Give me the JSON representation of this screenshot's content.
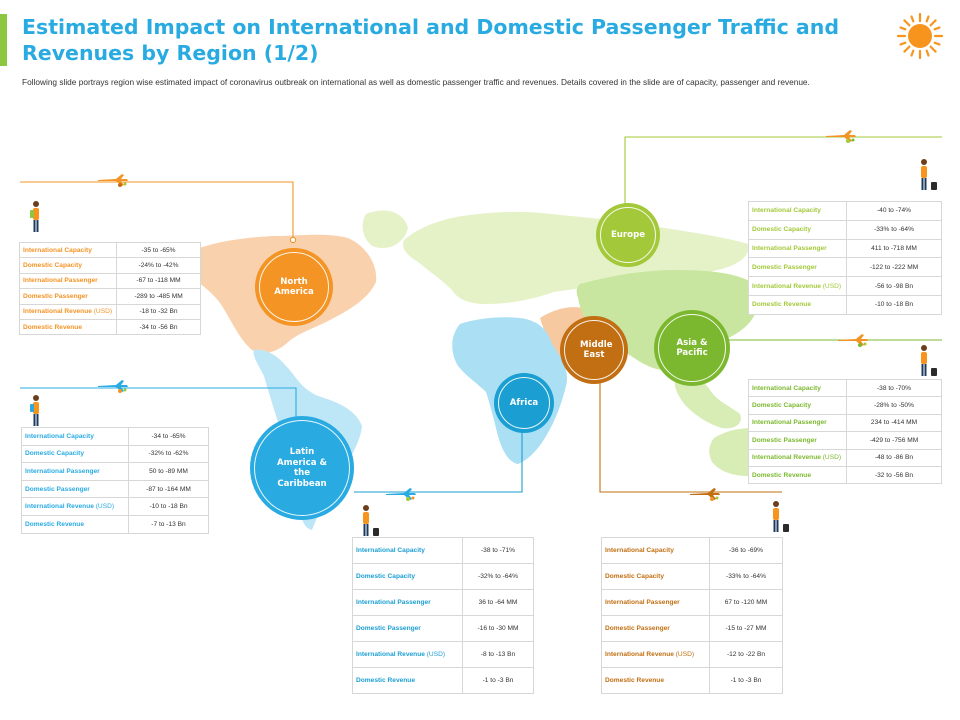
{
  "header": {
    "title": "Estimated Impact on International and Domestic Passenger Traffic and Revenues by Region (1/2)",
    "subtitle": "Following slide portrays region wise estimated impact of coronavirus outbreak on international as well as domestic passenger traffic and revenues. Details covered in the slide are of capacity, passenger and revenue."
  },
  "colors": {
    "title": "#29abe2",
    "accent_bar": "#8dc63f",
    "north_america": "#f39425",
    "latin_america": "#29abe2",
    "europe": "#a3c93a",
    "africa": "#1b9fd2",
    "middle_east": "#c16f12",
    "asia_pacific": "#7cb82f"
  },
  "regions": {
    "north_america": {
      "name": "North America",
      "rows": [
        {
          "label": "International Capacity",
          "value": "-35 to -65%"
        },
        {
          "label": "Domestic Capacity",
          "value": "-24% to -42%"
        },
        {
          "label": "International Passenger",
          "value": "-67 to -118 MM"
        },
        {
          "label": "Domestic Passenger",
          "value": "-289 to -485 MM"
        },
        {
          "label": "International Revenue",
          "unit": "(USD)",
          "value": "-18 to -32 Bn"
        },
        {
          "label": "Domestic Revenue",
          "value": "-34 to -56 Bn"
        }
      ]
    },
    "latin_america": {
      "name": "Latin America & the Caribbean",
      "rows": [
        {
          "label": "International Capacity",
          "value": "-34 to -65%"
        },
        {
          "label": "Domestic Capacity",
          "value": "-32% to -62%"
        },
        {
          "label": "International Passenger",
          "value": "50 to -89 MM"
        },
        {
          "label": "Domestic Passenger",
          "value": "-87 to -164 MM"
        },
        {
          "label": "International Revenue",
          "unit": "(USD)",
          "value": "-10 to -18 Bn"
        },
        {
          "label": "Domestic Revenue",
          "value": "-7 to -13 Bn"
        }
      ]
    },
    "europe": {
      "name": "Europe",
      "rows": [
        {
          "label": "International Capacity",
          "value": "-40 to -74%"
        },
        {
          "label": "Domestic Capacity",
          "value": "-33% to -64%"
        },
        {
          "label": "International Passenger",
          "value": "411 to -718 MM"
        },
        {
          "label": "Domestic Passenger",
          "value": "-122 to -222 MM"
        },
        {
          "label": "International Revenue",
          "unit": "(USD)",
          "value": "-56 to -98 Bn"
        },
        {
          "label": "Domestic Revenue",
          "value": "-10  to -18 Bn"
        }
      ]
    },
    "africa": {
      "name": "Africa",
      "rows": [
        {
          "label": "International Capacity",
          "value": "-38 to -71%"
        },
        {
          "label": "Domestic Capacity",
          "value": "-32% to -64%"
        },
        {
          "label": "International Passenger",
          "value": "36 to -64 MM"
        },
        {
          "label": "Domestic Passenger",
          "value": "-16 to -30 MM"
        },
        {
          "label": "International Revenue",
          "unit": "(USD)",
          "value": "-8 to -13 Bn"
        },
        {
          "label": "Domestic Revenue",
          "value": "-1 to -3 Bn"
        }
      ]
    },
    "middle_east": {
      "name": "Middle East",
      "rows": [
        {
          "label": "International Capacity",
          "value": "-36 to -69%"
        },
        {
          "label": "Domestic Capacity",
          "value": "-33% to -64%"
        },
        {
          "label": "International Passenger",
          "value": "67 to -120 MM"
        },
        {
          "label": "Domestic Passenger",
          "value": "-15 to -27 MM"
        },
        {
          "label": "International Revenue",
          "unit": "(USD)",
          "value": "-12 to -22 Bn"
        },
        {
          "label": "Domestic Revenue",
          "value": "-1 to -3 Bn"
        }
      ]
    },
    "asia_pacific": {
      "name": "Asia & Pacific",
      "rows": [
        {
          "label": "International Capacity",
          "value": "-38 to -70%"
        },
        {
          "label": "Domestic Capacity",
          "value": "-28% to -50%"
        },
        {
          "label": "International Passenger",
          "value": "234 to -414 MM"
        },
        {
          "label": "Domestic Passenger",
          "value": "-429 to -756 MM"
        },
        {
          "label": "International Revenue",
          "unit": "(USD)",
          "value": "-48 to -86 Bn"
        },
        {
          "label": "Domestic Revenue",
          "value": "-32  to -56 Bn"
        }
      ]
    }
  },
  "icons": [
    "sun-icon",
    "airplane-icon",
    "traveler-icon",
    "world-map"
  ]
}
